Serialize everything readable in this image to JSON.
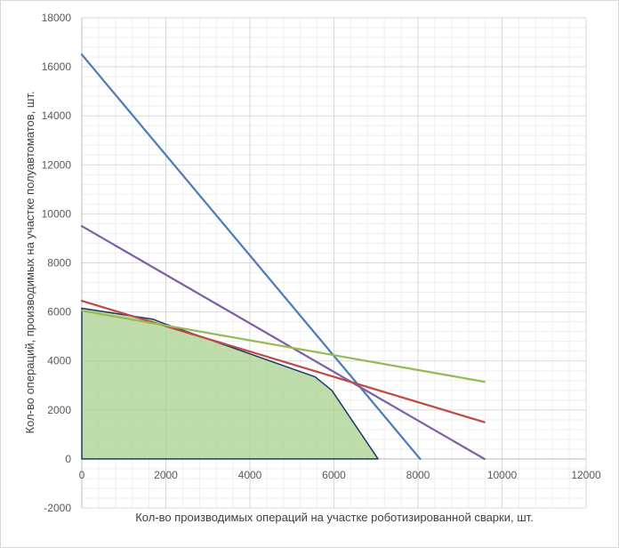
{
  "chart_data": {
    "type": "line",
    "title": "",
    "xlabel": "Кол-во производимых операций на участке роботизированной сварки, шт.",
    "ylabel": "Кол-во операций, производимых на участке полуавтоматов, шт.",
    "xlim": [
      0,
      12000
    ],
    "ylim": [
      -2000,
      18000
    ],
    "x_ticks": [
      "0",
      "2000",
      "4000",
      "6000",
      "8000",
      "10000",
      "12000"
    ],
    "y_ticks": [
      "-2000",
      "0",
      "2000",
      "4000",
      "6000",
      "8000",
      "10000",
      "12000",
      "14000",
      "16000",
      "18000"
    ],
    "grid": true,
    "legend": "none",
    "series": [
      {
        "color": "#4a7ebb",
        "points": [
          [
            0,
            16500
          ],
          [
            8050,
            0
          ]
        ]
      },
      {
        "color": "#7f60a8",
        "points": [
          [
            0,
            9500
          ],
          [
            9580,
            0
          ]
        ]
      },
      {
        "color": "#be4b48",
        "points": [
          [
            0,
            6450
          ],
          [
            9580,
            1500
          ]
        ]
      },
      {
        "color": "#98b954",
        "points": [
          [
            0,
            6050
          ],
          [
            9580,
            3150
          ]
        ]
      }
    ],
    "feasible_region": {
      "fill": "#a9d18e",
      "stroke": "#1f3864",
      "points": [
        [
          0,
          0
        ],
        [
          0,
          6150
        ],
        [
          1700,
          5700
        ],
        [
          2000,
          5500
        ],
        [
          5550,
          3350
        ],
        [
          5950,
          2800
        ],
        [
          7050,
          0
        ]
      ]
    }
  }
}
